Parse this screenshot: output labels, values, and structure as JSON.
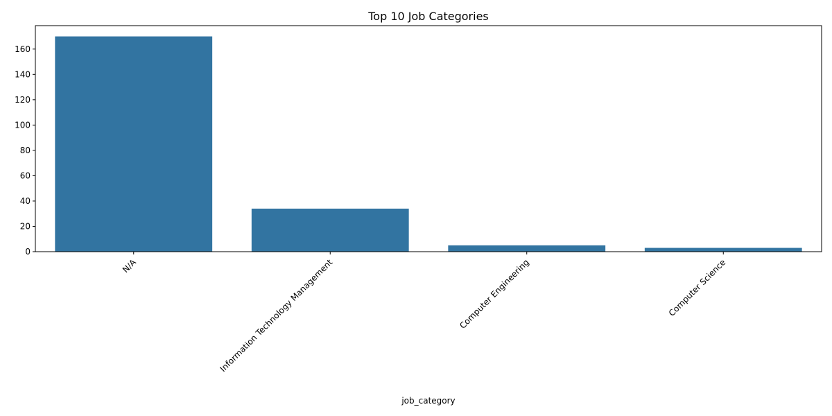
{
  "chart_data": {
    "type": "bar",
    "title": "Top 10 Job Categories",
    "xlabel": "job_category",
    "ylabel": "",
    "categories": [
      "N/A",
      "Information Technology Management",
      "Computer Engineering",
      "Computer Science"
    ],
    "values": [
      170,
      34,
      5,
      3
    ],
    "ylim": [
      0,
      178.5
    ],
    "yticks": [
      0,
      20,
      40,
      60,
      80,
      100,
      120,
      140,
      160
    ],
    "bar_color": "#3274a1",
    "grid": false,
    "legend": "none"
  }
}
